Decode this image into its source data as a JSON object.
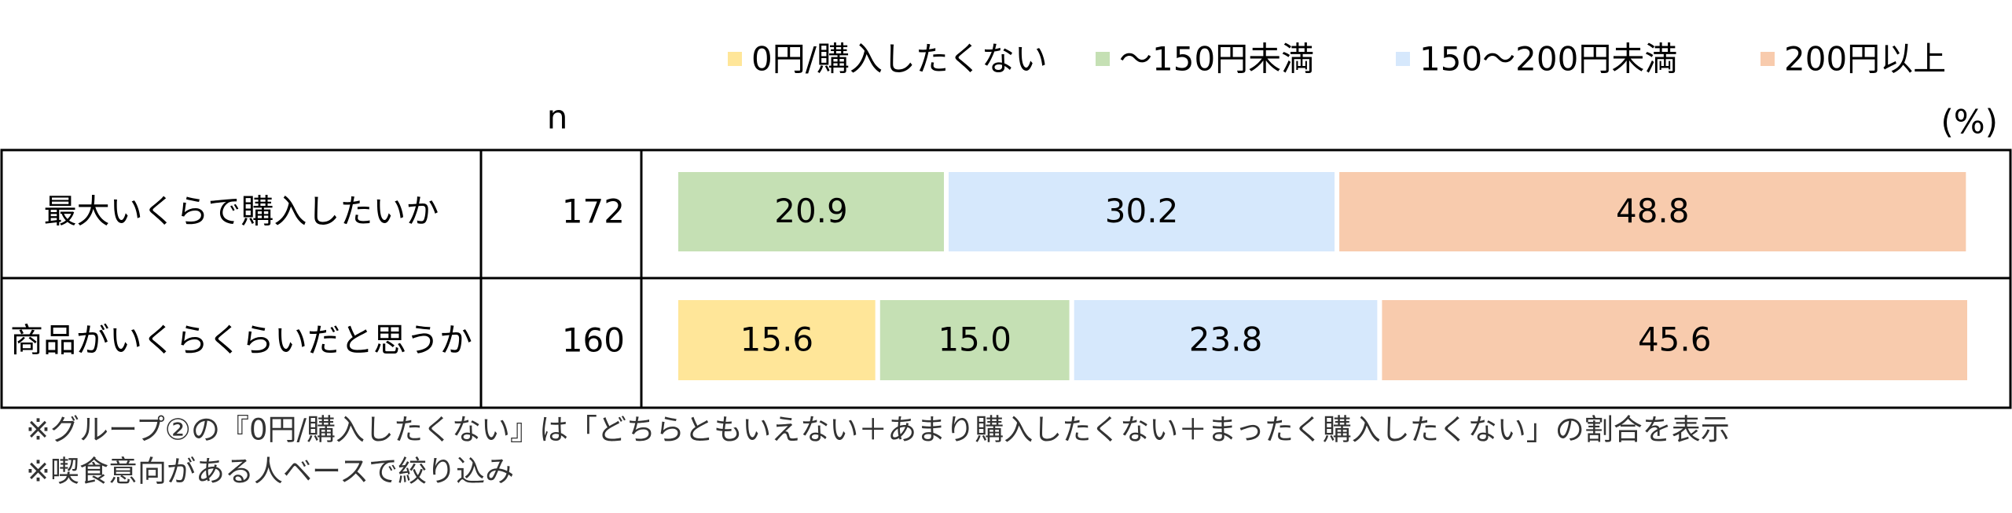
{
  "chart_data": {
    "type": "stacked-bar-table",
    "n_label": "n",
    "unit_label": "(%)",
    "categories": [
      "最大いくらで購入したいか",
      "商品がいくらくらいだと思うか"
    ],
    "n": [
      172,
      160
    ],
    "xlim": [
      0,
      100
    ],
    "series": [
      {
        "name": "0円/購入したくない",
        "color": "#ffe699",
        "values": [
          null,
          15.6
        ]
      },
      {
        "name": "～150円未満",
        "color": "#c5e0b4",
        "values": [
          20.9,
          15
        ],
        "value_labels": [
          "20.9",
          "15.0"
        ]
      },
      {
        "name": "150～200円未満",
        "color": "#d6e8fc",
        "values": [
          30.2,
          23.8
        ]
      },
      {
        "name": "200円以上",
        "color": "#f8cbad",
        "values": [
          48.8,
          45.6
        ]
      }
    ],
    "notes": [
      "※グループ②の『0円/購入したくない』は「どちらともいえない＋あまり購入したくない＋まったく購入したくない」の割合を表示",
      "※喫食意向がある人ベースで絞り込み"
    ]
  }
}
